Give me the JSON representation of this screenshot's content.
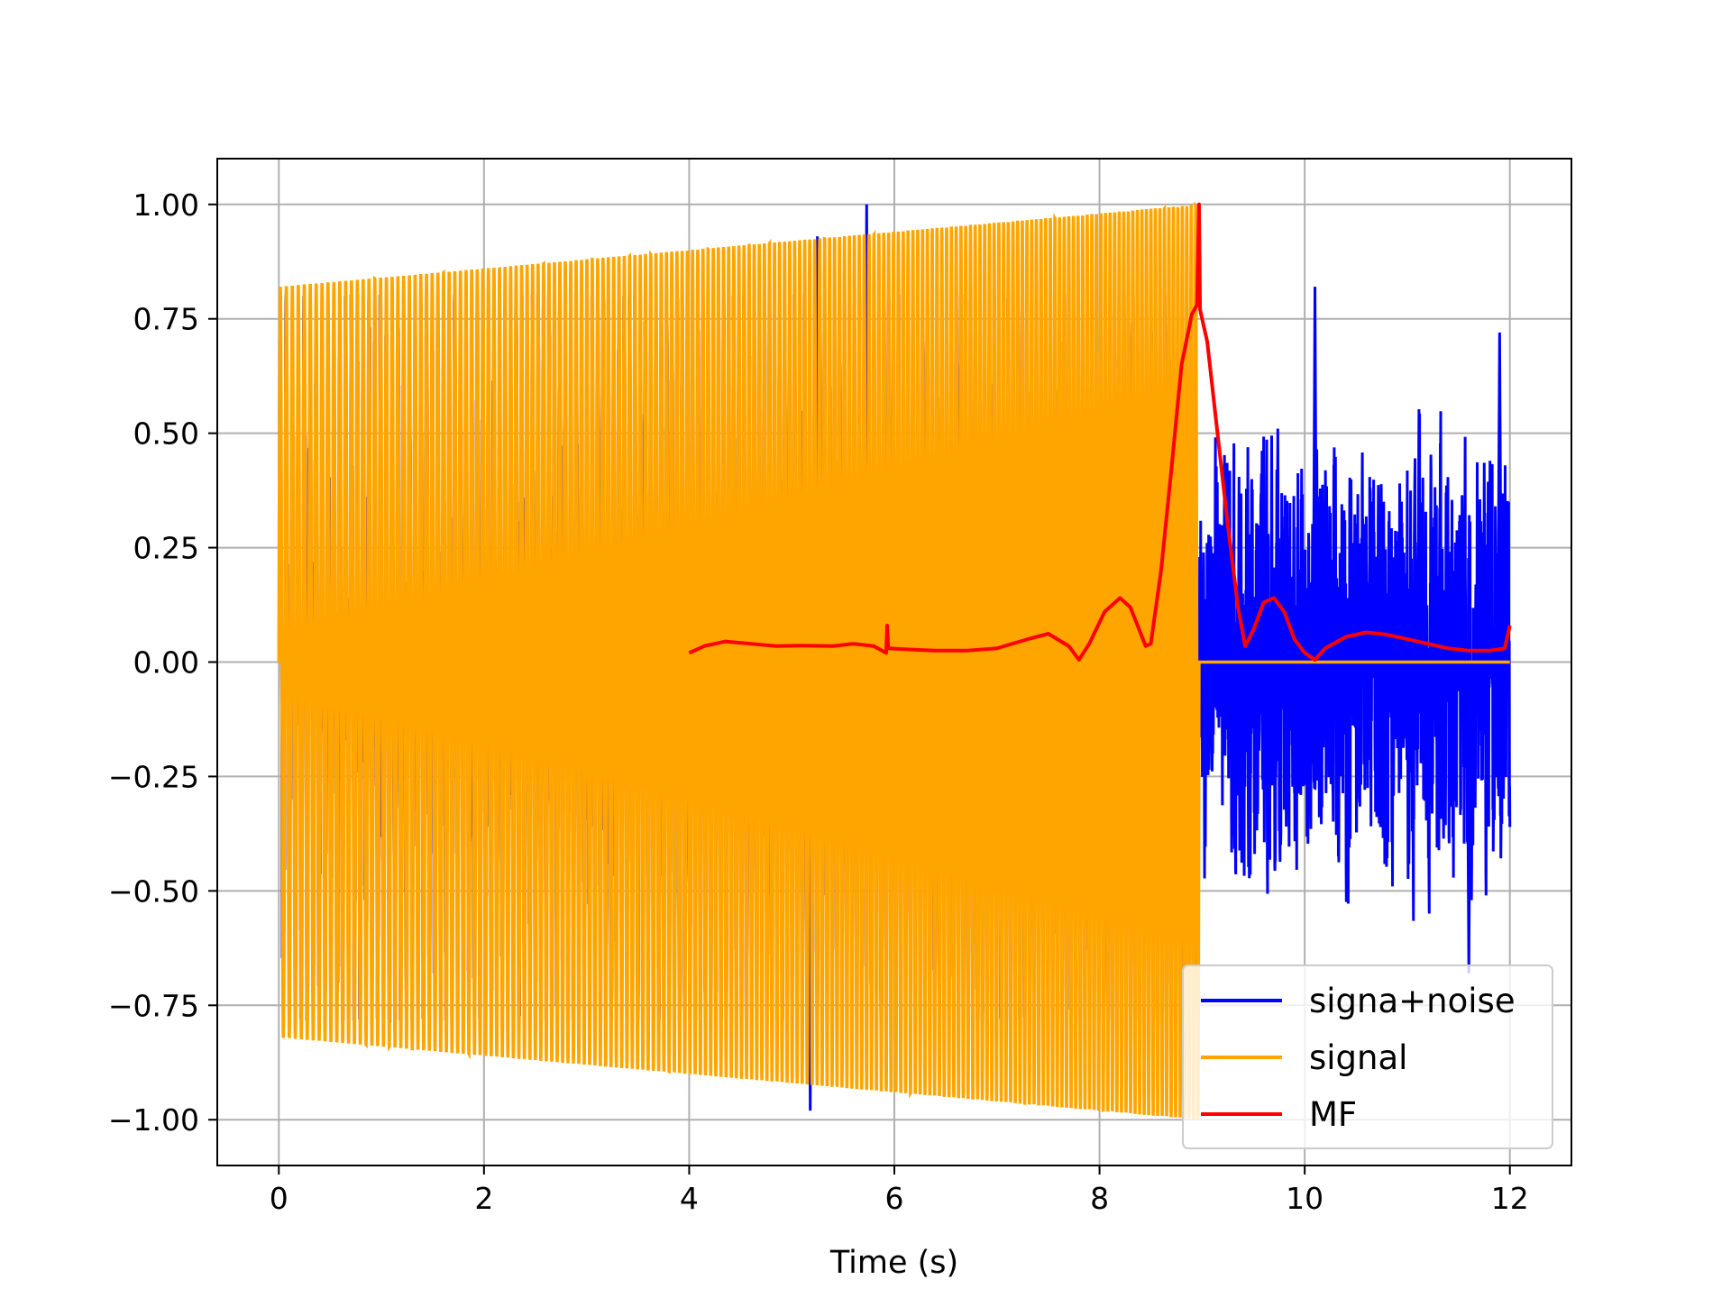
{
  "chart_data": {
    "type": "line",
    "title": "",
    "xlabel": "Time (s)",
    "ylabel": "",
    "xlim": [
      -0.6,
      12.6
    ],
    "ylim": [
      -1.1,
      1.1
    ],
    "xticks": [
      0,
      2,
      4,
      6,
      8,
      10,
      12
    ],
    "xtick_labels": [
      "0",
      "2",
      "4",
      "6",
      "8",
      "10",
      "12"
    ],
    "yticks": [
      1.0,
      0.75,
      0.5,
      0.25,
      0.0,
      -0.25,
      -0.5,
      -0.75,
      -1.0
    ],
    "ytick_labels": [
      "1.00",
      "0.75",
      "0.50",
      "0.25",
      "0.00",
      "−0.25",
      "−0.50",
      "−0.75",
      "−1.00"
    ],
    "grid": true,
    "legend_position": "lower-right",
    "series": [
      {
        "name": "signa+noise",
        "color": "#0000ff",
        "description": "random noise from 0 to 12 s, chirp added 0 to 9 s",
        "x_range": [
          0,
          12
        ],
        "noise_amplitude": 0.35,
        "peaks": [
          {
            "x": 5.18,
            "y": -0.98
          },
          {
            "x": 5.25,
            "y": 0.93
          },
          {
            "x": 5.73,
            "y": 1.0
          },
          {
            "x": 10.1,
            "y": 0.82
          },
          {
            "x": 11.9,
            "y": 0.72
          },
          {
            "x": 11.6,
            "y": -0.68
          }
        ]
      },
      {
        "name": "signal",
        "color": "#ffa500",
        "description": "chirp 0 to 8.97 s, amplitude growing 0.82 to 1.0, zero afterwards",
        "x_range": [
          0,
          12
        ],
        "chirp_end": 8.97,
        "amp_start": 0.82,
        "amp_end": 1.0,
        "cycles": 180
      },
      {
        "name": "MF",
        "color": "#ff0000",
        "x": [
          4.0,
          4.15,
          4.35,
          4.6,
          4.85,
          5.1,
          5.4,
          5.6,
          5.8,
          5.92,
          5.93,
          5.94,
          6.1,
          6.4,
          6.7,
          7.0,
          7.3,
          7.5,
          7.7,
          7.8,
          7.9,
          8.05,
          8.2,
          8.3,
          8.45,
          8.5,
          8.6,
          8.7,
          8.8,
          8.9,
          8.95,
          8.97,
          8.98,
          9.05,
          9.15,
          9.25,
          9.35,
          9.42,
          9.5,
          9.6,
          9.7,
          9.8,
          9.9,
          10.0,
          10.1,
          10.2,
          10.4,
          10.6,
          10.8,
          11.0,
          11.2,
          11.4,
          11.6,
          11.8,
          11.95,
          12.0
        ],
        "y": [
          0.02,
          0.035,
          0.045,
          0.04,
          0.035,
          0.036,
          0.035,
          0.04,
          0.035,
          0.02,
          0.08,
          0.03,
          0.028,
          0.025,
          0.025,
          0.03,
          0.05,
          0.062,
          0.035,
          0.005,
          0.04,
          0.11,
          0.14,
          0.12,
          0.035,
          0.04,
          0.2,
          0.42,
          0.65,
          0.76,
          0.78,
          1.0,
          0.77,
          0.7,
          0.5,
          0.3,
          0.12,
          0.035,
          0.07,
          0.13,
          0.14,
          0.11,
          0.05,
          0.02,
          0.005,
          0.03,
          0.055,
          0.065,
          0.06,
          0.05,
          0.04,
          0.03,
          0.025,
          0.025,
          0.03,
          0.08
        ]
      }
    ]
  }
}
